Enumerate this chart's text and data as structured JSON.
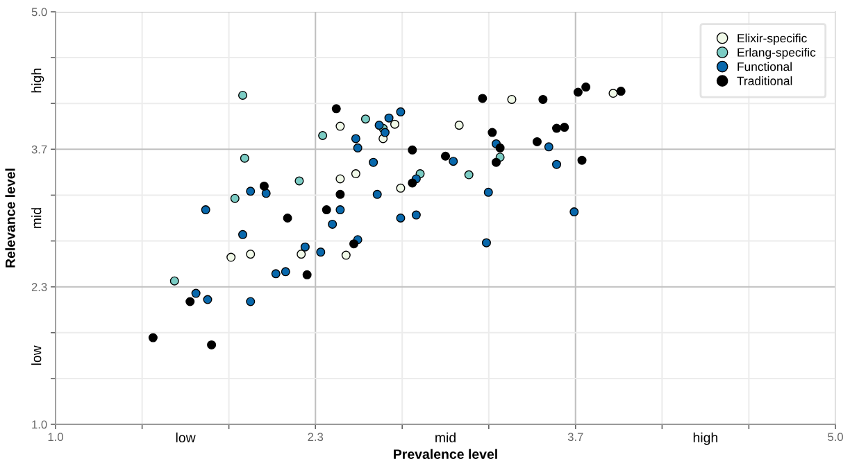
{
  "chart_data": {
    "type": "scatter",
    "xlabel": "Prevalence level",
    "ylabel": "Relevance level",
    "xlim": [
      1,
      5
    ],
    "ylim": [
      1,
      5
    ],
    "xticks": [
      {
        "value": 1,
        "label": "1.0"
      },
      {
        "value": 1.444,
        "label": null
      },
      {
        "value": 1.889,
        "label": null
      },
      {
        "value": 2.333,
        "label": "2.3"
      },
      {
        "value": 2.778,
        "label": null
      },
      {
        "value": 3.222,
        "label": null
      },
      {
        "value": 3.667,
        "label": "3.7"
      },
      {
        "value": 4.111,
        "label": null
      },
      {
        "value": 4.556,
        "label": null
      },
      {
        "value": 5,
        "label": "5.0"
      }
    ],
    "yticks": [
      {
        "value": 1,
        "label": "1.0"
      },
      {
        "value": 1.444,
        "label": null
      },
      {
        "value": 1.889,
        "label": null
      },
      {
        "value": 2.333,
        "label": "2.3"
      },
      {
        "value": 2.778,
        "label": null
      },
      {
        "value": 3.222,
        "label": null
      },
      {
        "value": 3.667,
        "label": "3.7"
      },
      {
        "value": 4.111,
        "label": null
      },
      {
        "value": 4.556,
        "label": null
      },
      {
        "value": 5,
        "label": "5.0"
      }
    ],
    "annotations": [
      "low",
      "mid",
      "high",
      "low",
      "mid",
      "high"
    ],
    "grid": true,
    "legend": "top right",
    "marker": "circle",
    "series": [
      {
        "name": "Elixir-specific",
        "color": "#f0f9e8",
        "x": [
          3.34,
          3.86,
          2.46,
          2.74,
          3.07,
          2.68,
          2.54,
          2.46,
          2.77,
          1.9,
          2.0,
          2.26,
          2.49
        ],
        "values": [
          4.15,
          4.21,
          3.89,
          3.91,
          3.9,
          3.77,
          3.43,
          3.38,
          3.29,
          2.62,
          2.65,
          2.65,
          2.64
        ]
      },
      {
        "name": "Erlang-specific",
        "color": "#7bccc4",
        "x": [
          1.96,
          2.37,
          1.97,
          2.25,
          1.92,
          2.59,
          2.68,
          2.87,
          3.12,
          3.28,
          1.61
        ],
        "values": [
          4.19,
          3.8,
          3.58,
          3.36,
          3.19,
          3.96,
          3.87,
          3.43,
          3.42,
          3.59,
          2.39
        ]
      },
      {
        "name": "Functional",
        "color": "#0868ac",
        "x": [
          2.0,
          2.08,
          1.77,
          2.46,
          2.42,
          2.77,
          2.71,
          2.66,
          2.69,
          2.54,
          2.55,
          2.63,
          3.04,
          2.85,
          2.65,
          3.22,
          2.77,
          2.85,
          3.26,
          3.53,
          3.57,
          3.21,
          3.66,
          1.96,
          2.28,
          2.36,
          2.55,
          2.13,
          2.18,
          1.72,
          1.78,
          2.0
        ],
        "values": [
          3.26,
          3.24,
          3.08,
          3.08,
          2.94,
          4.03,
          3.97,
          3.9,
          3.83,
          3.77,
          3.68,
          3.54,
          3.55,
          3.38,
          3.23,
          3.25,
          3.0,
          3.03,
          3.72,
          3.69,
          3.52,
          2.76,
          3.06,
          2.84,
          2.72,
          2.67,
          2.79,
          2.46,
          2.48,
          2.27,
          2.21,
          2.19
        ]
      },
      {
        "name": "Traditional",
        "color": "#000000",
        "x": [
          2.44,
          3.19,
          3.5,
          3.57,
          3.61,
          3.47,
          3.24,
          3.28,
          3.26,
          2.83,
          3.0,
          2.83,
          2.46,
          2.07,
          2.19,
          2.39,
          3.68,
          3.72,
          3.9,
          3.7,
          2.53,
          2.29,
          1.69,
          1.5,
          1.8
        ],
        "values": [
          4.06,
          4.16,
          4.15,
          3.87,
          3.88,
          3.74,
          3.83,
          3.68,
          3.54,
          3.66,
          3.6,
          3.34,
          3.23,
          3.31,
          3.0,
          3.08,
          4.22,
          4.27,
          4.23,
          3.56,
          2.75,
          2.45,
          2.19,
          1.84,
          1.77
        ]
      }
    ]
  }
}
